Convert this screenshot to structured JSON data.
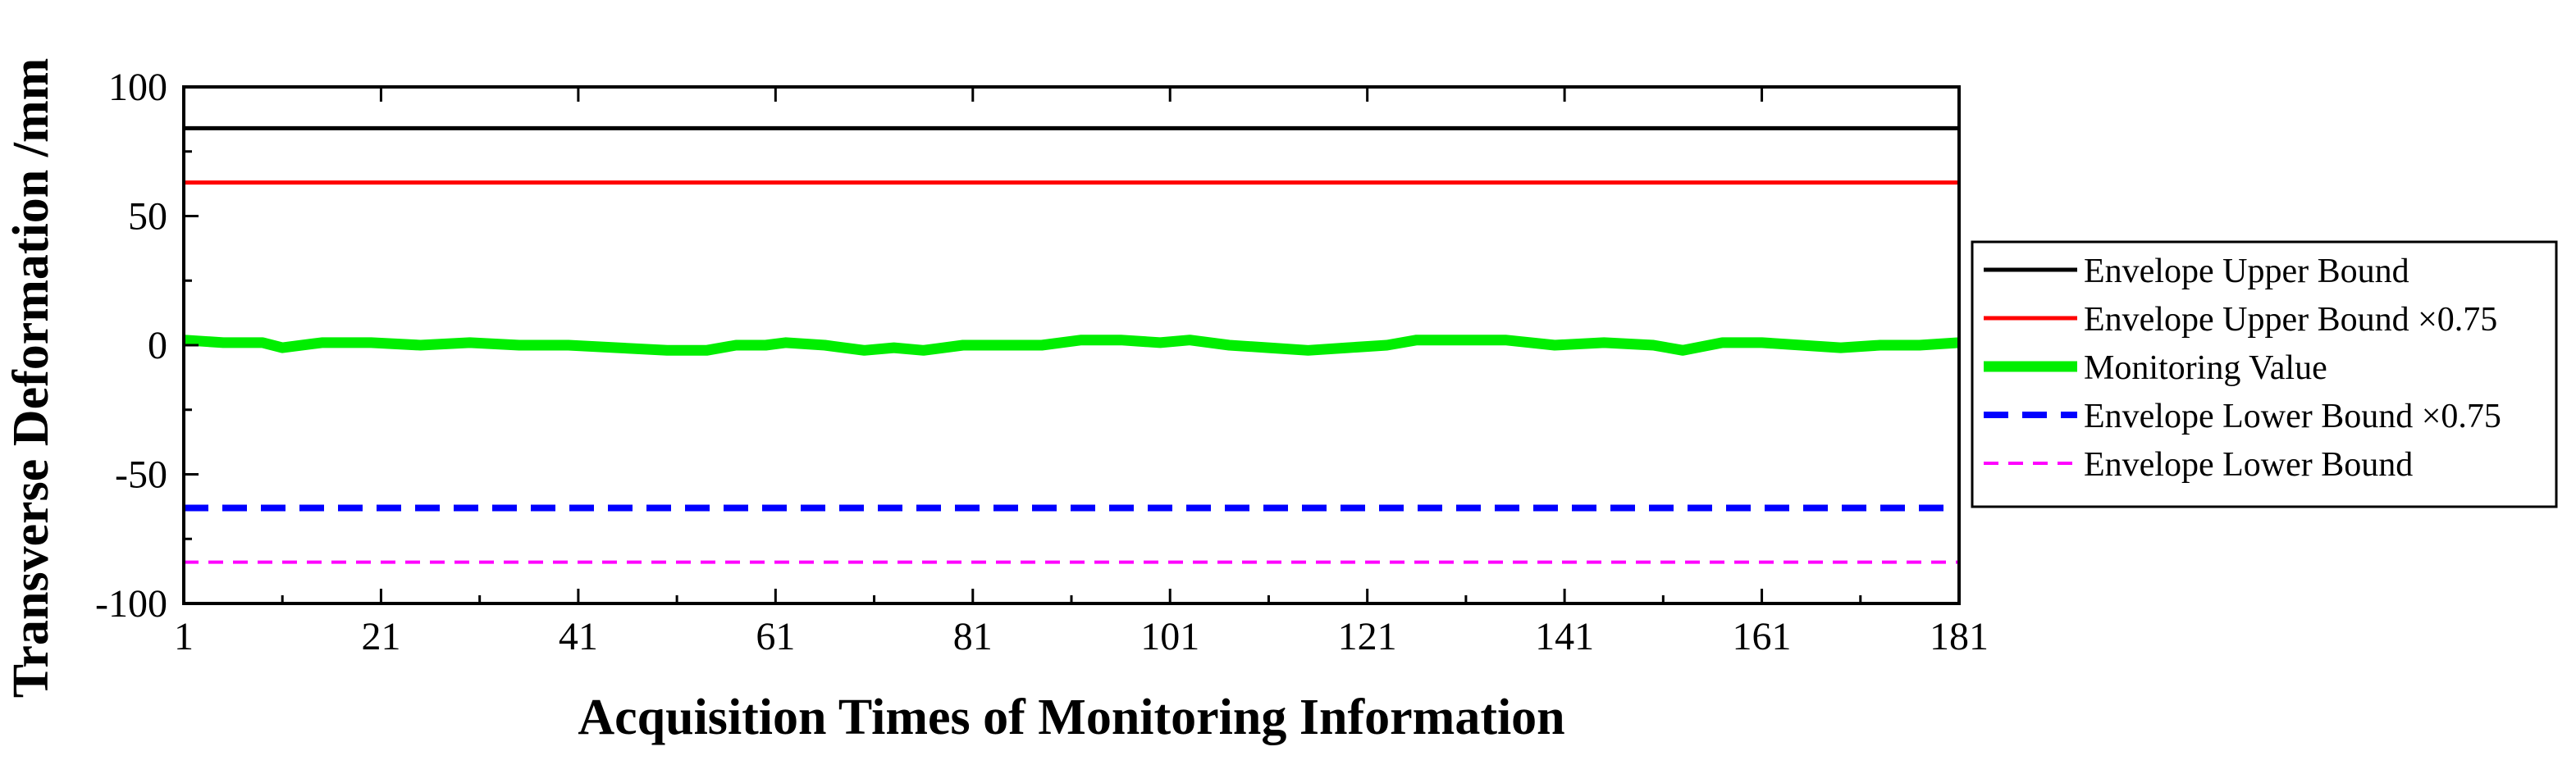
{
  "chart_data": {
    "type": "line",
    "title": "",
    "xlabel": "Acquisition Times of Monitoring Information",
    "ylabel": "Transverse Deformation /mm",
    "xlim": [
      1,
      181
    ],
    "ylim": [
      -100,
      100
    ],
    "xticks": [
      1,
      21,
      41,
      61,
      81,
      101,
      121,
      141,
      161,
      181
    ],
    "yticks": [
      100,
      50,
      0,
      -50,
      -100
    ],
    "grid": false,
    "legend_position": "right",
    "series": [
      {
        "name": "Envelope Upper Bound",
        "color": "#000000",
        "style": "solid",
        "x": [
          1,
          181
        ],
        "y": [
          84,
          84
        ]
      },
      {
        "name": "Envelope Upper Bound ×0.75",
        "color": "#ff0000",
        "style": "solid",
        "x": [
          1,
          181
        ],
        "y": [
          63,
          63
        ]
      },
      {
        "name": "Monitoring Value",
        "color": "#00ee00",
        "style": "solid-thick",
        "x": [
          1,
          5,
          9,
          11,
          15,
          20,
          25,
          30,
          35,
          40,
          45,
          50,
          54,
          57,
          60,
          62,
          66,
          70,
          73,
          76,
          80,
          84,
          88,
          92,
          96,
          100,
          103,
          107,
          111,
          115,
          119,
          123,
          126,
          130,
          135,
          140,
          145,
          150,
          153,
          157,
          161,
          165,
          169,
          173,
          177,
          181
        ],
        "y": [
          2,
          1,
          1,
          -1,
          1,
          1,
          0,
          1,
          0,
          0,
          -1,
          -2,
          -2,
          0,
          0,
          1,
          0,
          -2,
          -1,
          -2,
          0,
          0,
          0,
          2,
          2,
          1,
          2,
          0,
          -1,
          -2,
          -1,
          0,
          2,
          2,
          2,
          0,
          1,
          0,
          -2,
          1,
          1,
          0,
          -1,
          0,
          0,
          1
        ]
      },
      {
        "name": "Envelope Lower Bound ×0.75",
        "color": "#0000ff",
        "style": "dashed",
        "x": [
          1,
          181
        ],
        "y": [
          -63,
          -63
        ]
      },
      {
        "name": "Envelope Lower Bound",
        "color": "#ff00ff",
        "style": "dashed-thin",
        "x": [
          1,
          181
        ],
        "y": [
          -84,
          -84
        ]
      }
    ]
  }
}
